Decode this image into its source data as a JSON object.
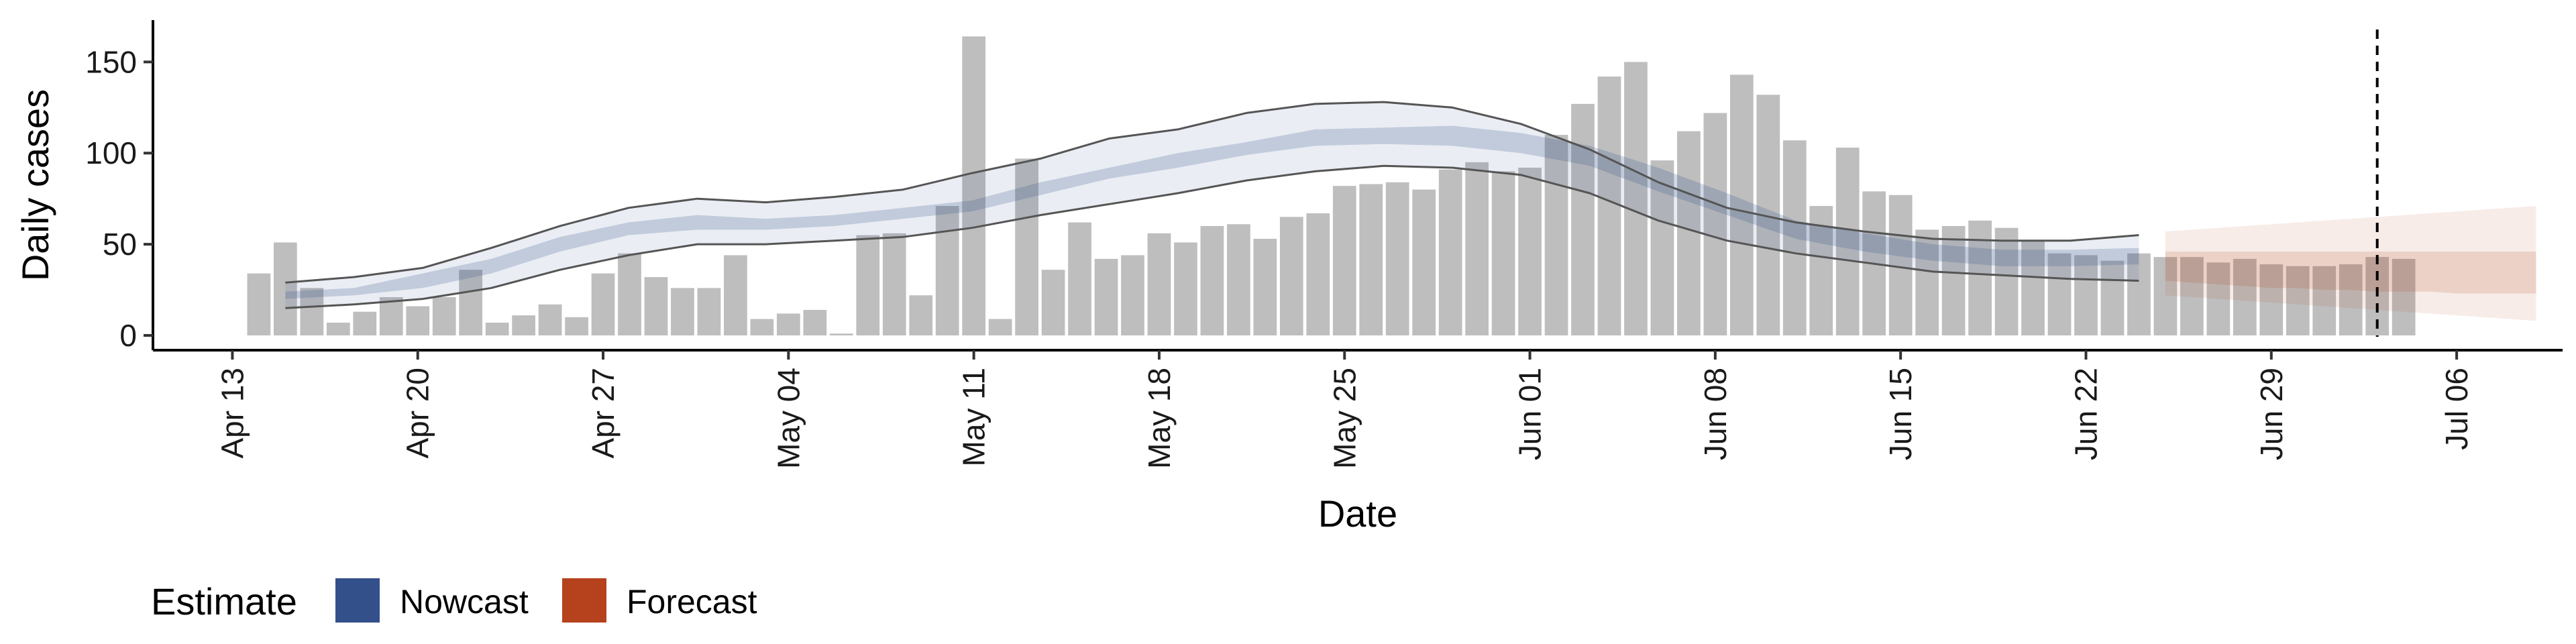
{
  "chart_data": {
    "type": "bar",
    "xlabel": "Date",
    "ylabel": "Daily cases",
    "ylim": [
      0,
      170
    ],
    "yticks": [
      0,
      50,
      100,
      150
    ],
    "x_range": [
      "2020-04-10",
      "2020-07-10"
    ],
    "xticks": [
      {
        "date": "2020-04-13",
        "label": "Apr 13"
      },
      {
        "date": "2020-04-20",
        "label": "Apr 20"
      },
      {
        "date": "2020-04-27",
        "label": "Apr 27"
      },
      {
        "date": "2020-05-04",
        "label": "May 04"
      },
      {
        "date": "2020-05-11",
        "label": "May 11"
      },
      {
        "date": "2020-05-18",
        "label": "May 18"
      },
      {
        "date": "2020-05-25",
        "label": "May 25"
      },
      {
        "date": "2020-06-01",
        "label": "Jun 01"
      },
      {
        "date": "2020-06-08",
        "label": "Jun 08"
      },
      {
        "date": "2020-06-15",
        "label": "Jun 15"
      },
      {
        "date": "2020-06-22",
        "label": "Jun 22"
      },
      {
        "date": "2020-06-29",
        "label": "Jun 29"
      },
      {
        "date": "2020-07-06",
        "label": "Jul 06"
      }
    ],
    "grid": false,
    "bar_color": "#bebebe",
    "observed": {
      "start_date": "2020-04-14",
      "values": [
        34,
        51,
        26,
        7,
        13,
        21,
        16,
        21,
        36,
        7,
        11,
        17,
        10,
        34,
        45,
        32,
        26,
        26,
        44,
        9,
        12,
        14,
        1,
        55,
        56,
        22,
        71,
        164,
        9,
        97,
        36,
        62,
        42,
        44,
        56,
        51,
        60,
        61,
        53,
        65,
        67,
        82,
        83,
        84,
        80,
        91,
        95,
        90,
        92,
        110,
        127,
        142,
        150,
        96,
        112,
        122,
        143,
        132,
        107,
        71,
        103,
        79,
        77,
        58,
        60,
        63,
        59,
        52,
        45,
        44,
        41,
        45,
        43,
        43,
        40,
        42,
        39,
        38,
        38,
        39,
        43,
        42
      ]
    },
    "nowcast": {
      "start_date": "2020-04-15",
      "color": "#34508b",
      "dates_sample": [
        "2020-04-15",
        "2020-04-22",
        "2020-04-29",
        "2020-05-06",
        "2020-05-13",
        "2020-05-20",
        "2020-05-27",
        "2020-06-01",
        "2020-06-08",
        "2020-06-15",
        "2020-06-22",
        "2020-06-24"
      ],
      "median": [
        21,
        24,
        30,
        38,
        50,
        58,
        62,
        61,
        63,
        66,
        70,
        80,
        88,
        96,
        103,
        110,
        112,
        111,
        107,
        100,
        86,
        72,
        58,
        52,
        46,
        43,
        43,
        44
      ],
      "inner_lower": [
        20,
        22,
        26,
        34,
        46,
        55,
        58,
        58,
        60,
        64,
        68,
        77,
        86,
        92,
        99,
        104,
        105,
        104,
        100,
        93,
        79,
        66,
        53,
        46,
        41,
        38,
        38,
        39
      ],
      "inner_upper": [
        24,
        26,
        34,
        42,
        54,
        62,
        66,
        64,
        66,
        70,
        74,
        84,
        92,
        100,
        106,
        113,
        114,
        115,
        111,
        104,
        92,
        78,
        63,
        56,
        50,
        47,
        47,
        48
      ],
      "outer_lower": [
        15,
        17,
        20,
        26,
        36,
        44,
        50,
        50,
        52,
        54,
        59,
        66,
        72,
        78,
        85,
        90,
        93,
        92,
        88,
        78,
        63,
        52,
        45,
        40,
        35,
        33,
        31,
        30
      ],
      "outer_upper": [
        29,
        32,
        37,
        48,
        60,
        70,
        75,
        73,
        76,
        80,
        89,
        97,
        108,
        113,
        122,
        127,
        128,
        125,
        116,
        102,
        84,
        70,
        62,
        57,
        53,
        52,
        52,
        55
      ]
    },
    "forecast": {
      "start_date": "2020-06-25",
      "end_date": "2020-07-09",
      "color": "#b5421d",
      "median": [
        38,
        38,
        38,
        38,
        37,
        37,
        37,
        37,
        37,
        37,
        36,
        36,
        36,
        36,
        35
      ],
      "inner_lower": [
        30,
        29,
        28,
        27,
        26,
        26,
        25,
        25,
        24,
        24,
        24,
        23,
        23,
        23,
        23
      ],
      "inner_upper": [
        46,
        46,
        46,
        46,
        46,
        46,
        46,
        46,
        46,
        46,
        46,
        46,
        46,
        46,
        46
      ],
      "outer_lower": [
        22,
        21,
        20,
        19,
        18,
        17,
        16,
        15,
        14,
        13,
        12,
        11,
        10,
        9,
        8
      ],
      "outer_upper": [
        57,
        58,
        59,
        60,
        61,
        62,
        63,
        64,
        65,
        66,
        67,
        68,
        69,
        70,
        71
      ]
    },
    "vline": {
      "date": "2020-07-03",
      "style": "dashed",
      "color": "#000000"
    },
    "legend": {
      "placement": "bottom-left",
      "title": "Estimate",
      "entries": [
        {
          "label": "Nowcast",
          "color": "#34508b"
        },
        {
          "label": "Forecast",
          "color": "#b5421d"
        }
      ]
    }
  }
}
